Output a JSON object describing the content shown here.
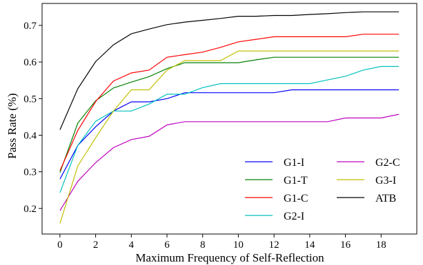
{
  "chart_data": {
    "type": "line",
    "title": "",
    "xlabel": "Maximum Frequency of Self-Reflection",
    "ylabel": "Pass Rate (%)",
    "xlim": [
      -1,
      20
    ],
    "ylim": [
      0.13,
      0.76
    ],
    "xticks": [
      0,
      2,
      4,
      6,
      8,
      10,
      12,
      14,
      16,
      18
    ],
    "yticks": [
      0.2,
      0.3,
      0.4,
      0.5,
      0.6,
      0.7
    ],
    "ytick_labels": [
      "0.2",
      "0.3",
      "0.4",
      "0.5",
      "0.6",
      "0.7"
    ],
    "grid": false,
    "legend_position": "bottom-right",
    "x": [
      0,
      1,
      2,
      3,
      4,
      5,
      6,
      7,
      8,
      9,
      10,
      11,
      12,
      13,
      14,
      15,
      16,
      17,
      18,
      19
    ],
    "series": [
      {
        "name": "G1-I",
        "color": "#0000ff",
        "values": [
          0.28,
          0.372,
          0.423,
          0.466,
          0.491,
          0.491,
          0.5,
          0.516,
          0.516,
          0.516,
          0.516,
          0.516,
          0.516,
          0.524,
          0.524,
          0.524,
          0.524,
          0.524,
          0.524,
          0.524
        ]
      },
      {
        "name": "G1-T",
        "color": "#008000",
        "values": [
          0.298,
          0.433,
          0.494,
          0.529,
          0.545,
          0.56,
          0.582,
          0.598,
          0.598,
          0.598,
          0.598,
          0.606,
          0.613,
          0.613,
          0.613,
          0.613,
          0.613,
          0.613,
          0.613,
          0.613
        ]
      },
      {
        "name": "G1-C",
        "color": "#ff0000",
        "values": [
          0.303,
          0.413,
          0.492,
          0.548,
          0.57,
          0.578,
          0.613,
          0.62,
          0.627,
          0.64,
          0.655,
          0.662,
          0.669,
          0.669,
          0.669,
          0.669,
          0.669,
          0.676,
          0.676,
          0.676
        ]
      },
      {
        "name": "G2-I",
        "color": "#00bfbf",
        "values": [
          0.243,
          0.372,
          0.438,
          0.466,
          0.466,
          0.485,
          0.512,
          0.512,
          0.53,
          0.541,
          0.541,
          0.541,
          0.541,
          0.541,
          0.541,
          0.551,
          0.561,
          0.578,
          0.588,
          0.588
        ]
      },
      {
        "name": "G2-C",
        "color": "#bf00bf",
        "values": [
          0.194,
          0.274,
          0.325,
          0.366,
          0.388,
          0.397,
          0.428,
          0.437,
          0.437,
          0.437,
          0.437,
          0.437,
          0.437,
          0.437,
          0.437,
          0.437,
          0.447,
          0.447,
          0.447,
          0.457
        ]
      },
      {
        "name": "G3-I",
        "color": "#bfbf00",
        "values": [
          0.159,
          0.316,
          0.393,
          0.466,
          0.524,
          0.524,
          0.578,
          0.604,
          0.604,
          0.604,
          0.63,
          0.63,
          0.63,
          0.63,
          0.63,
          0.63,
          0.63,
          0.63,
          0.63,
          0.63
        ]
      },
      {
        "name": "ATB",
        "color": "#000000",
        "values": [
          0.415,
          0.527,
          0.601,
          0.647,
          0.677,
          0.69,
          0.702,
          0.709,
          0.714,
          0.719,
          0.725,
          0.725,
          0.727,
          0.727,
          0.73,
          0.732,
          0.735,
          0.737,
          0.737,
          0.737
        ]
      }
    ]
  }
}
